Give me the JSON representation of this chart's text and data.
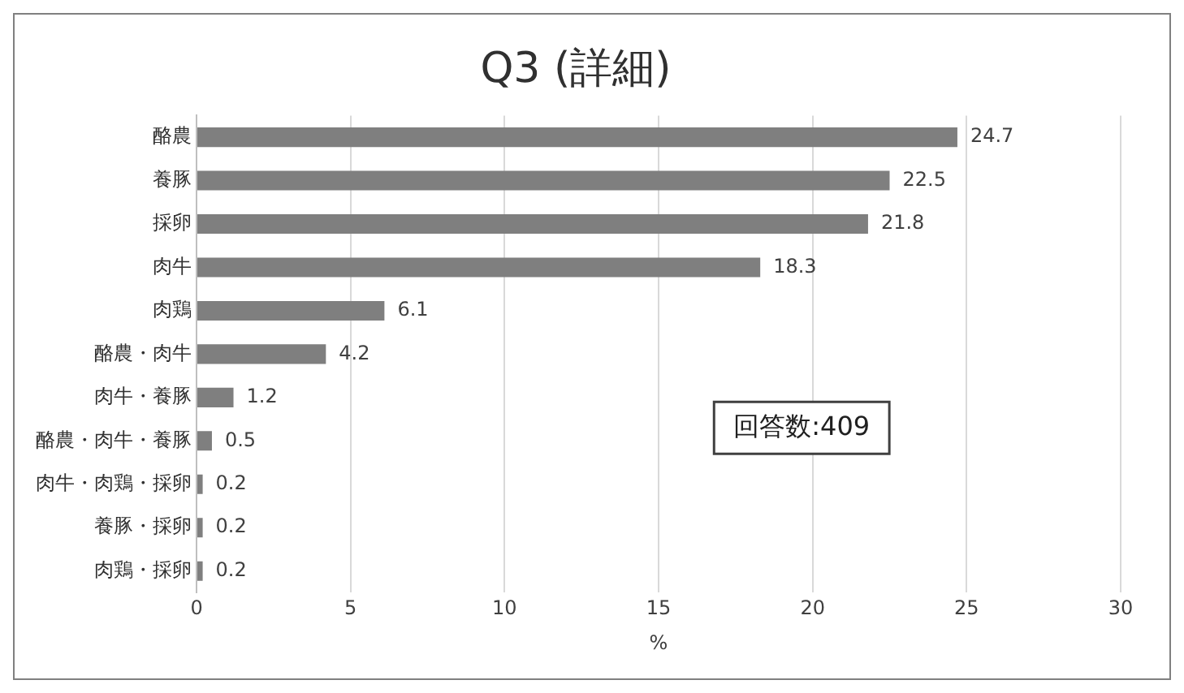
{
  "chart_data": {
    "type": "bar",
    "orientation": "horizontal",
    "title": "Q3 (詳細)",
    "xlabel": "%",
    "categories": [
      "酪農",
      "養豚",
      "採卵",
      "肉牛",
      "肉鶏",
      "酪農・肉牛",
      "肉牛・養豚",
      "酪農・肉牛・養豚",
      "肉牛・肉鶏・採卵",
      "養豚・採卵",
      "肉鶏・採卵"
    ],
    "values": [
      24.7,
      22.5,
      21.8,
      18.3,
      6.1,
      4.2,
      1.2,
      0.5,
      0.2,
      0.2,
      0.2
    ],
    "color": "#7f7f7f",
    "xlim": [
      0,
      30
    ],
    "xticks": [
      0,
      5,
      10,
      15,
      20,
      25,
      30
    ],
    "grid": "x",
    "data_labels": true,
    "legend": false,
    "annotations": [
      "回答数:409"
    ]
  }
}
